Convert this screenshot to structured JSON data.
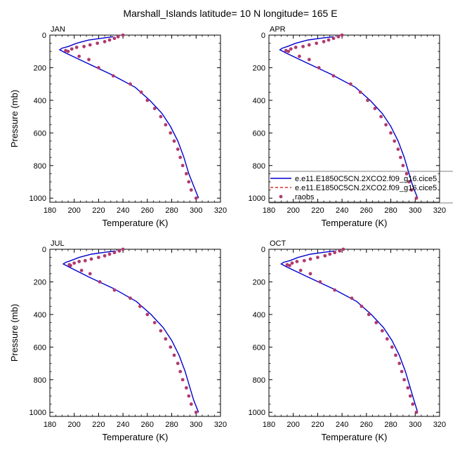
{
  "figure_title": "Marshall_Islands  latitude= 10 N longitude= 165 E",
  "colors": {
    "model_1": "#0000cd",
    "model_2": "#dd0000",
    "raobs": "#b03a6e",
    "axes": "#000000"
  },
  "legend": {
    "entries": [
      {
        "label": "e.e11.E1850C5CN.2XCO2.f09_g16.cice5",
        "style": "solid-line",
        "color": "#0000cd"
      },
      {
        "label": "e.e11.E1850C5CN.2XCO2.f09_g16.cice5",
        "style": "dashed-line",
        "color": "#dd0000"
      },
      {
        "label": "raobs",
        "style": "dot",
        "color": "#b03a6e"
      }
    ]
  },
  "chart_data": [
    {
      "type": "line",
      "title": "JAN",
      "xlabel": "Temperature (K)",
      "ylabel": "Pressure (mb)",
      "xlim": [
        180,
        320
      ],
      "ylim": [
        0,
        1025
      ],
      "y_reversed": true,
      "x_ticks": [
        180,
        200,
        220,
        240,
        260,
        280,
        300,
        320
      ],
      "y_ticks": [
        0,
        200,
        400,
        600,
        800,
        1000
      ],
      "series": [
        {
          "type": "line",
          "style": "solid",
          "x": [
            232,
            222,
            212,
            202,
            195,
            190,
            188,
            193,
            210,
            230,
            250,
            262,
            272,
            279,
            285,
            290,
            294,
            298,
            302
          ],
          "y": [
            10,
            20,
            30,
            50,
            70,
            80,
            90,
            110,
            170,
            240,
            320,
            400,
            480,
            560,
            650,
            750,
            850,
            925,
            1000
          ]
        },
        {
          "type": "scatter",
          "x": [
            240,
            236,
            233,
            229,
            225,
            219,
            213,
            208,
            202,
            198,
            193,
            195,
            204,
            212,
            220,
            232,
            246,
            255,
            260,
            266,
            271,
            275,
            279,
            282,
            285,
            287,
            289,
            292,
            294,
            296,
            300
          ],
          "y": [
            0,
            10,
            20,
            30,
            40,
            50,
            60,
            70,
            75,
            85,
            95,
            100,
            130,
            150,
            200,
            250,
            300,
            350,
            400,
            450,
            500,
            550,
            600,
            650,
            700,
            750,
            800,
            850,
            900,
            950,
            1000
          ]
        }
      ]
    },
    {
      "type": "line",
      "title": "APR",
      "xlabel": "Temperature (K)",
      "ylabel": "",
      "xlim": [
        180,
        320
      ],
      "ylim": [
        0,
        1025
      ],
      "y_reversed": true,
      "x_ticks": [
        180,
        200,
        220,
        240,
        260,
        280,
        300,
        320
      ],
      "y_ticks": [
        0,
        200,
        400,
        600,
        800,
        1000
      ],
      "series": [
        {
          "type": "line",
          "style": "solid",
          "x": [
            233,
            222,
            212,
            202,
            195,
            191,
            189,
            194,
            211,
            231,
            251,
            263,
            273,
            280,
            286,
            291,
            295,
            298,
            302
          ],
          "y": [
            10,
            20,
            30,
            50,
            70,
            80,
            90,
            110,
            170,
            240,
            320,
            400,
            480,
            560,
            650,
            750,
            850,
            925,
            1000
          ]
        },
        {
          "type": "scatter",
          "x": [
            240,
            237,
            233,
            229,
            225,
            219,
            213,
            208,
            202,
            198,
            194,
            196,
            205,
            213,
            221,
            233,
            247,
            255,
            261,
            267,
            272,
            276,
            280,
            283,
            286,
            288,
            290,
            293,
            295,
            297,
            301
          ],
          "y": [
            0,
            10,
            20,
            30,
            40,
            50,
            60,
            70,
            75,
            85,
            95,
            100,
            130,
            150,
            200,
            250,
            300,
            350,
            400,
            450,
            500,
            550,
            600,
            650,
            700,
            750,
            800,
            850,
            900,
            950,
            1000
          ]
        }
      ]
    },
    {
      "type": "line",
      "title": "JUL",
      "xlabel": "Temperature (K)",
      "ylabel": "Pressure (mb)",
      "xlim": [
        180,
        320
      ],
      "ylim": [
        0,
        1025
      ],
      "y_reversed": true,
      "x_ticks": [
        180,
        200,
        220,
        240,
        260,
        280,
        300,
        320
      ],
      "y_ticks": [
        0,
        200,
        400,
        600,
        800,
        1000
      ],
      "series": [
        {
          "type": "line",
          "style": "solid",
          "x": [
            234,
            224,
            214,
            204,
            197,
            193,
            191,
            196,
            212,
            232,
            251,
            263,
            273,
            280,
            286,
            291,
            295,
            298,
            302
          ],
          "y": [
            10,
            20,
            30,
            50,
            70,
            80,
            90,
            110,
            170,
            240,
            320,
            400,
            480,
            560,
            650,
            750,
            850,
            925,
            1000
          ]
        },
        {
          "type": "scatter",
          "x": [
            240,
            237,
            233,
            229,
            225,
            220,
            214,
            209,
            204,
            200,
            196,
            197,
            206,
            213,
            221,
            233,
            246,
            254,
            260,
            266,
            271,
            275,
            279,
            282,
            285,
            287,
            289,
            292,
            294,
            296,
            300
          ],
          "y": [
            0,
            10,
            20,
            30,
            40,
            50,
            60,
            70,
            75,
            85,
            95,
            100,
            130,
            150,
            200,
            250,
            300,
            350,
            400,
            450,
            500,
            550,
            600,
            650,
            700,
            750,
            800,
            850,
            900,
            950,
            1000
          ]
        }
      ]
    },
    {
      "type": "line",
      "title": "OCT",
      "xlabel": "Temperature (K)",
      "ylabel": "",
      "xlim": [
        180,
        320
      ],
      "ylim": [
        0,
        1025
      ],
      "y_reversed": true,
      "x_ticks": [
        180,
        200,
        220,
        240,
        260,
        280,
        300,
        320
      ],
      "y_ticks": [
        0,
        200,
        400,
        600,
        800,
        1000
      ],
      "series": [
        {
          "type": "line",
          "style": "solid",
          "x": [
            234,
            224,
            214,
            204,
            197,
            192,
            190,
            195,
            212,
            232,
            252,
            264,
            274,
            281,
            287,
            292,
            296,
            299,
            302
          ],
          "y": [
            10,
            20,
            30,
            50,
            70,
            80,
            90,
            110,
            170,
            240,
            320,
            400,
            480,
            560,
            650,
            750,
            850,
            925,
            1000
          ]
        },
        {
          "type": "scatter",
          "x": [
            241,
            238,
            234,
            230,
            226,
            220,
            214,
            209,
            203,
            199,
            195,
            197,
            206,
            214,
            222,
            234,
            248,
            256,
            262,
            268,
            273,
            277,
            281,
            284,
            287,
            289,
            291,
            294,
            296,
            298,
            301
          ],
          "y": [
            0,
            10,
            20,
            30,
            40,
            50,
            60,
            70,
            75,
            85,
            95,
            100,
            130,
            150,
            200,
            250,
            300,
            350,
            400,
            450,
            500,
            550,
            600,
            650,
            700,
            750,
            800,
            850,
            900,
            950,
            1000
          ]
        }
      ]
    }
  ]
}
